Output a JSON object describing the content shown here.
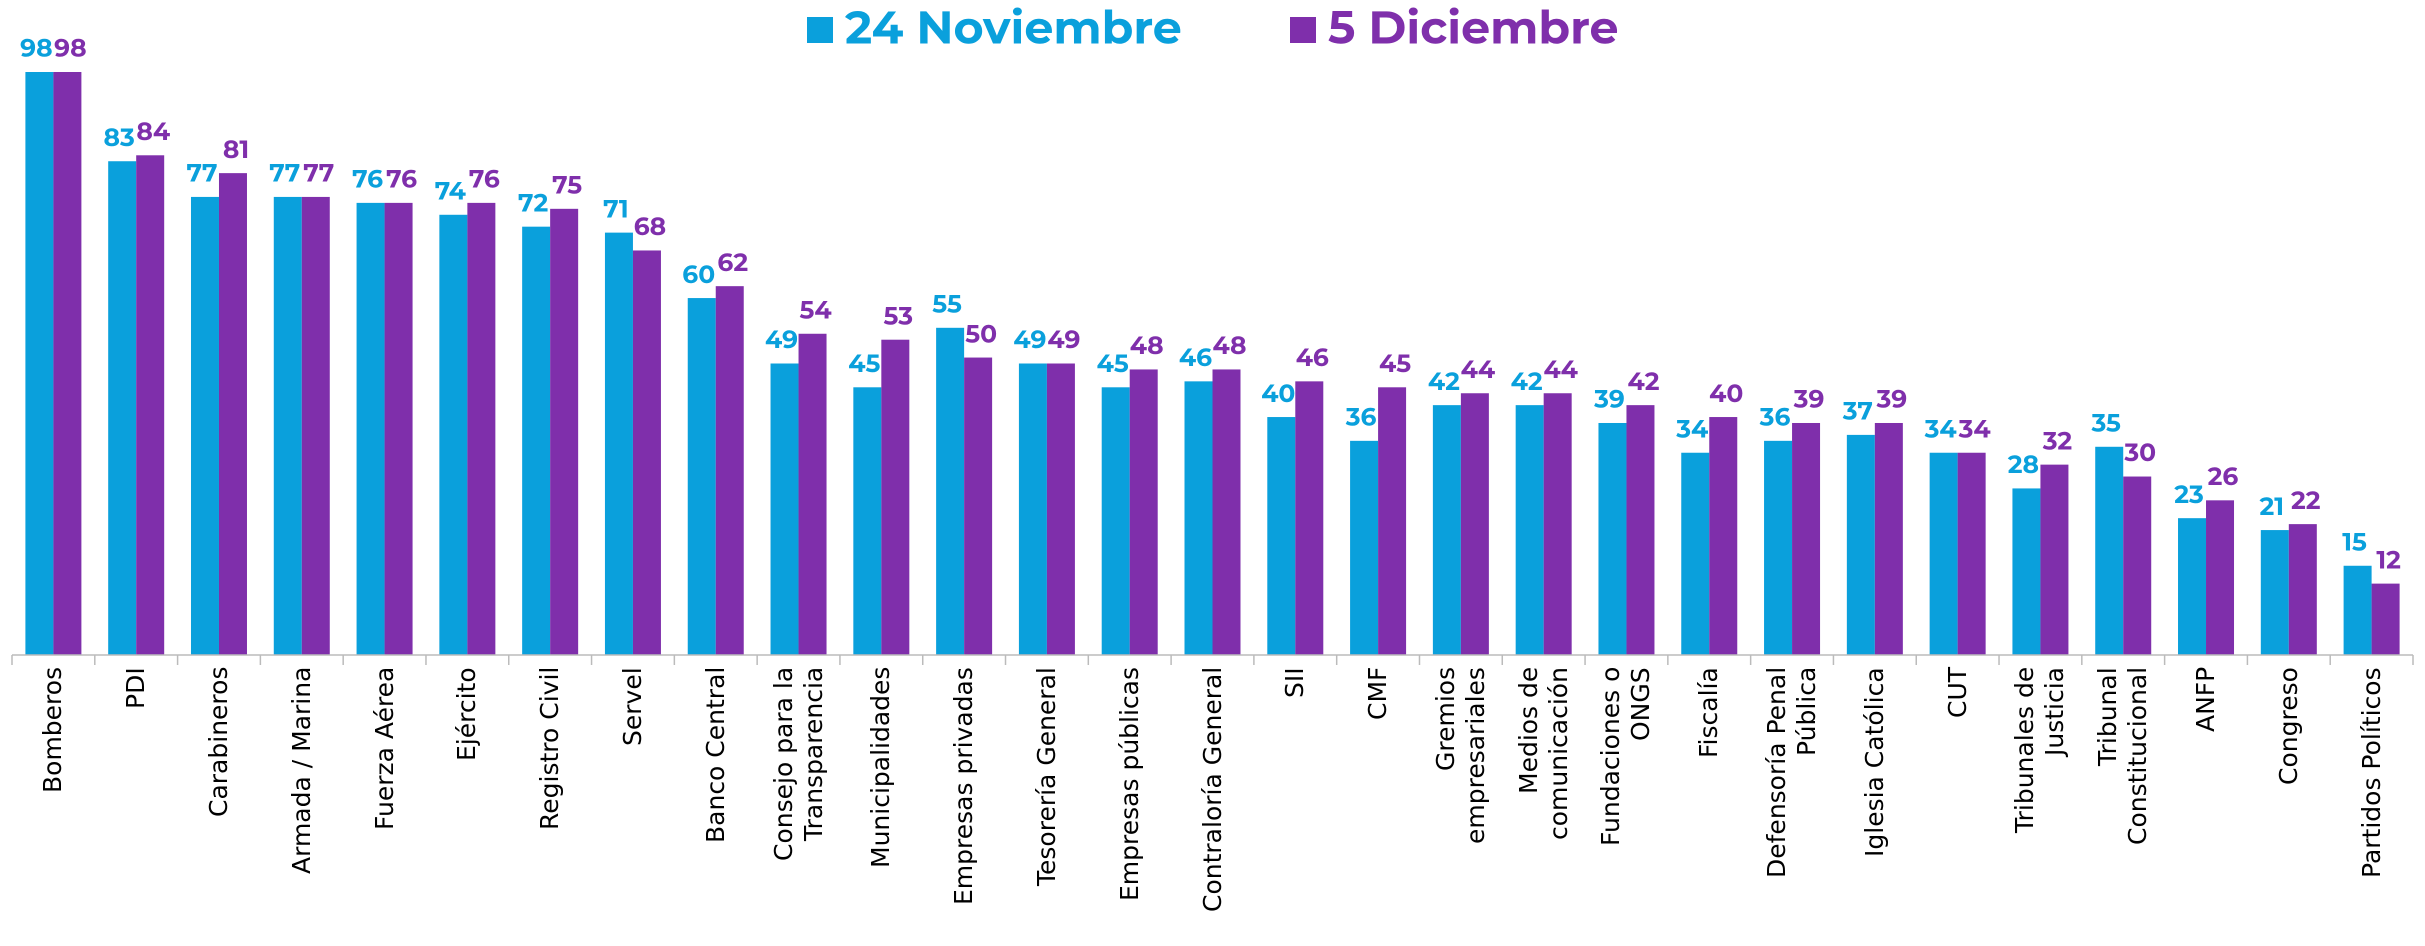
{
  "chart_data": {
    "type": "bar",
    "categories": [
      "Bomberos",
      "PDI",
      "Carabineros",
      "Armada / Marina",
      "Fuerza Aérea",
      "Ejército",
      "Registro Civil",
      "Servel",
      "Banco Central",
      "Consejo para la\nTransparencia",
      "Municipalidades",
      "Empresas privadas",
      "Tesorería General",
      "Empresas públicas",
      "Contraloría General",
      "SII",
      "CMF",
      "Gremios\nempresariales",
      "Medios de\ncomunicación",
      "Fundaciones o\nONGS",
      "Fiscalía",
      "Defensoría Penal\nPública",
      "Iglesia Católica",
      "CUT",
      "Tribunales de\nJusticia",
      "Tribunal\nConstitucional",
      "ANFP",
      "Congreso",
      "Partidos Políticos"
    ],
    "series": [
      {
        "name": "24 Noviembre",
        "color": "#0aa0dc",
        "values": [
          98,
          83,
          77,
          77,
          76,
          74,
          72,
          71,
          60,
          49,
          45,
          55,
          49,
          45,
          46,
          40,
          36,
          42,
          42,
          39,
          34,
          36,
          37,
          34,
          28,
          35,
          23,
          21,
          15
        ]
      },
      {
        "name": "5 Diciembre",
        "color": "#7f2fab",
        "values": [
          98,
          84,
          81,
          77,
          76,
          76,
          75,
          68,
          62,
          54,
          53,
          50,
          49,
          48,
          48,
          46,
          45,
          44,
          44,
          42,
          40,
          39,
          39,
          34,
          32,
          30,
          26,
          22,
          12
        ]
      }
    ],
    "legend": "top"
  }
}
